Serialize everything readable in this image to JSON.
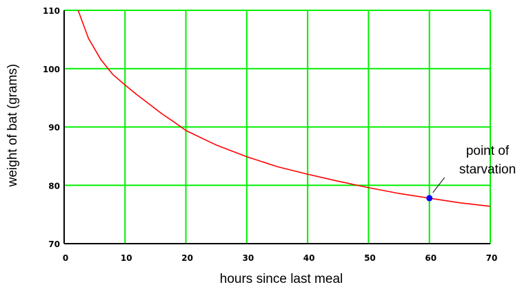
{
  "chart_data": {
    "type": "line",
    "title": "",
    "xlabel": "hours since last meal",
    "ylabel": "weight of bat (grams)",
    "xlim": [
      0,
      70
    ],
    "ylim": [
      70,
      110
    ],
    "x_ticks": [
      0,
      10,
      20,
      30,
      40,
      50,
      60,
      70
    ],
    "y_ticks": [
      70,
      80,
      90,
      100,
      110
    ],
    "grid": true,
    "colors": {
      "grid": "#00ee00",
      "line": "#ff0000",
      "point": "#0000ff",
      "background": "#ffffff"
    },
    "series": [
      {
        "x": [
          2.3,
          4,
          6,
          8,
          10,
          12,
          14,
          16,
          18,
          20,
          25,
          30,
          35,
          40,
          45,
          50,
          55,
          60,
          65,
          70
        ],
        "y": [
          110,
          105.2,
          101.6,
          99.0,
          97.2,
          95.5,
          93.9,
          92.3,
          90.9,
          89.4,
          86.9,
          84.9,
          83.2,
          81.9,
          80.7,
          79.6,
          78.6,
          77.8,
          77.0,
          76.4
        ]
      }
    ],
    "points": [
      {
        "x": 60,
        "y": 77.8
      }
    ],
    "annotations": [
      {
        "lines": [
          "point of",
          "starvation"
        ],
        "target_x": 60,
        "target_y": 77.8
      }
    ]
  }
}
